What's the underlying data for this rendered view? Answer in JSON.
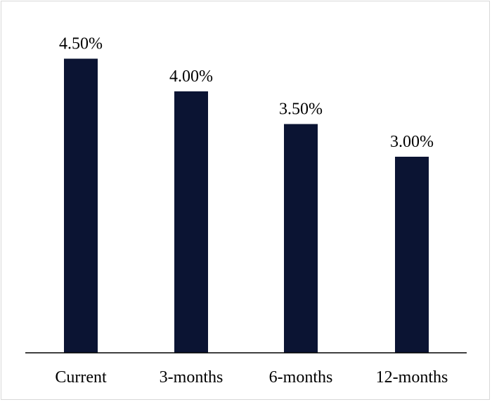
{
  "chart_data": {
    "type": "bar",
    "categories": [
      "Current",
      "3-months",
      "6-months",
      "12-months"
    ],
    "values": [
      4.5,
      4.0,
      3.5,
      3.0
    ],
    "data_labels": [
      "4.50%",
      "4.00%",
      "3.50%",
      "3.00%"
    ],
    "ylim": [
      0,
      5
    ],
    "grid": false,
    "legend": "none",
    "colors": {
      "bar": "#0b1433",
      "axis": "#000000"
    }
  }
}
